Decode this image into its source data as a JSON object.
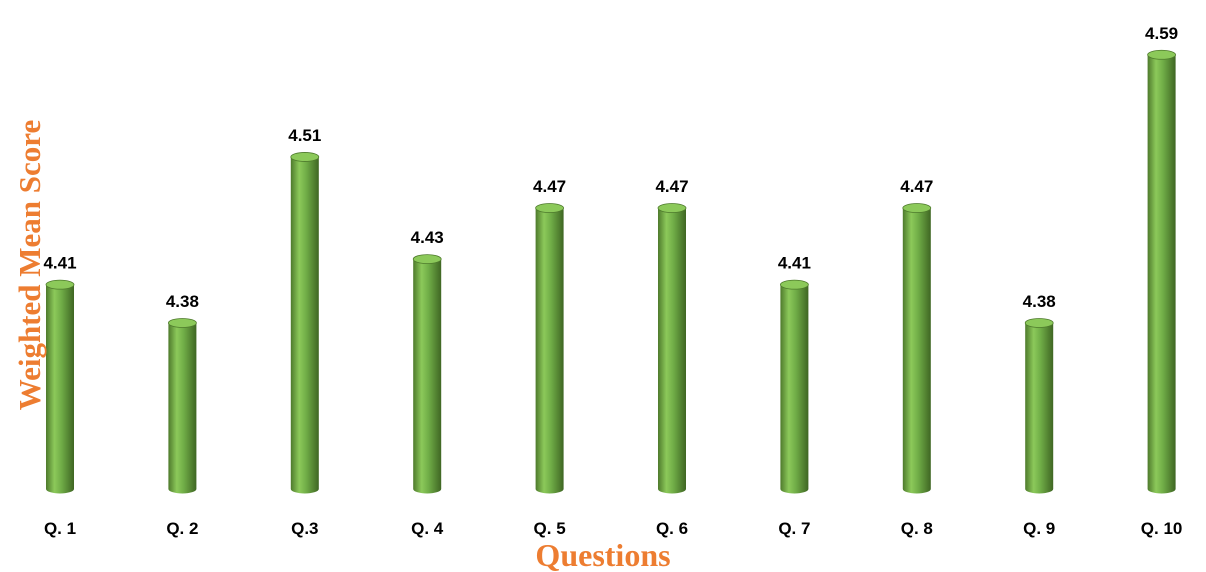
{
  "chart_data": {
    "type": "bar",
    "categories": [
      "Q. 1",
      "Q. 2",
      "Q.3",
      "Q. 4",
      "Q. 5",
      "Q. 6",
      "Q. 7",
      "Q. 8",
      "Q. 9",
      "Q. 10"
    ],
    "values": [
      4.41,
      4.38,
      4.51,
      4.43,
      4.47,
      4.47,
      4.41,
      4.47,
      4.38,
      4.59
    ],
    "data_labels": [
      "4.41",
      "4.38",
      "4.51",
      "4.43",
      "4.47",
      "4.47",
      "4.41",
      "4.47",
      "4.38",
      "4.59"
    ],
    "xlabel": "Questions",
    "ylabel": "Weighted Mean Score",
    "ylim": [
      4.25,
      4.6
    ],
    "grid": false,
    "legend": "none",
    "bar_style": "cylinder",
    "colors": {
      "bar": "#70AD47",
      "bar_dark": "#4E7A2C",
      "bar_light": "#8CC95A",
      "axis_title": "#ED7D31",
      "label": "#000000"
    }
  }
}
